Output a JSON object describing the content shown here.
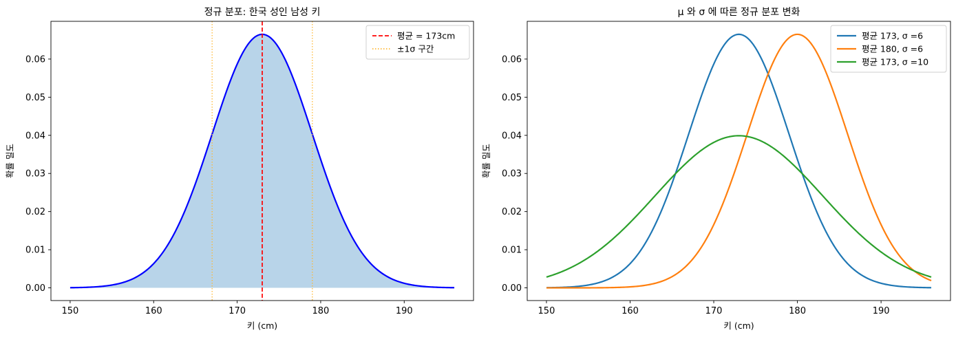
{
  "chart_data": [
    {
      "type": "line",
      "title": "정규 분포: 한국 성인 남성 키",
      "xlabel": "키 (cm)",
      "ylabel": "확률 밀도",
      "xlim": [
        147.7,
        198.3
      ],
      "ylim": [
        -0.00333,
        0.0699
      ],
      "xticks": [
        150,
        160,
        170,
        180,
        190
      ],
      "yticks": [
        0.0,
        0.01,
        0.02,
        0.03,
        0.04,
        0.05,
        0.06
      ],
      "ytick_labels": [
        "0.00",
        "0.01",
        "0.02",
        "0.03",
        "0.04",
        "0.05",
        "0.06"
      ],
      "x_range": [
        150,
        196
      ],
      "grid": false,
      "legend_position": "top-right",
      "series": [
        {
          "kind": "normal_pdf",
          "mu": 173,
          "sigma": 6,
          "color": "#0000ff",
          "fill": "#b8d4e9",
          "legend": false
        }
      ],
      "vlines": [
        {
          "x": 173,
          "color": "#ff0000",
          "style": "dashed",
          "label": "평균 = 173cm"
        },
        {
          "x": 167,
          "color": "#ffb833",
          "style": "dotted",
          "label": "±1σ  구간"
        },
        {
          "x": 179,
          "color": "#ffb833",
          "style": "dotted",
          "label": null
        }
      ]
    },
    {
      "type": "line",
      "title": "μ 와 σ 에 따른 정규 분포 변화",
      "xlabel": "키 (cm)",
      "ylabel": "확률 밀도",
      "xlim": [
        147.7,
        198.3
      ],
      "ylim": [
        -0.00333,
        0.0699
      ],
      "xticks": [
        150,
        160,
        170,
        180,
        190
      ],
      "yticks": [
        0.0,
        0.01,
        0.02,
        0.03,
        0.04,
        0.05,
        0.06
      ],
      "ytick_labels": [
        "0.00",
        "0.01",
        "0.02",
        "0.03",
        "0.04",
        "0.05",
        "0.06"
      ],
      "x_range": [
        150,
        196
      ],
      "grid": false,
      "legend_position": "top-right",
      "series": [
        {
          "kind": "normal_pdf",
          "mu": 173,
          "sigma": 6,
          "color": "#1f77b4",
          "name": "평균 173, σ =6"
        },
        {
          "kind": "normal_pdf",
          "mu": 180,
          "sigma": 6,
          "color": "#ff7f0e",
          "name": "평균 180, σ =6"
        },
        {
          "kind": "normal_pdf",
          "mu": 173,
          "sigma": 10,
          "color": "#2ca02c",
          "name": "평균 173, σ =10"
        }
      ]
    }
  ]
}
